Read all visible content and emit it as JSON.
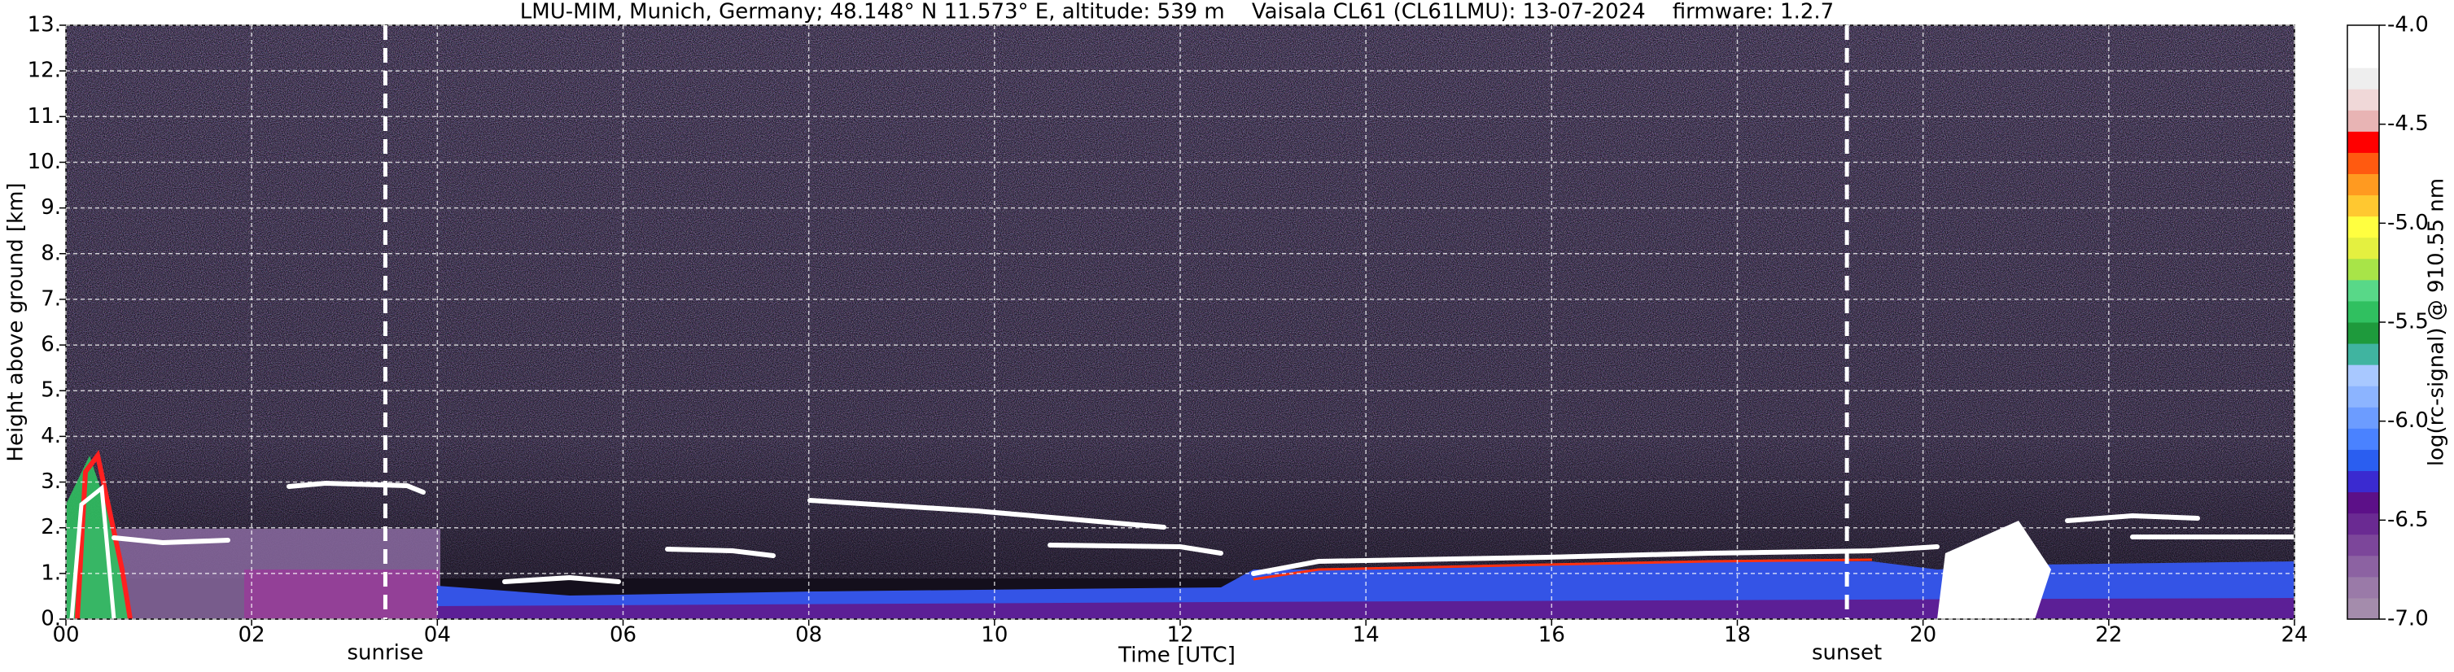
{
  "chart_data": {
    "type": "heatmap",
    "title": "LMU-MIM, Munich, Germany; 48.148° N 11.573° E, altitude: 539 m    Vaisala CL61 (CL61LMU): 13-07-2024    firmware: 1.2.7",
    "x_label": "Time [UTC]",
    "y_label": "Height above ground [km]",
    "xlim": [
      0,
      24
    ],
    "xticks": [
      {
        "value": 0,
        "label": "00"
      },
      {
        "value": 2,
        "label": "02"
      },
      {
        "value": 4,
        "label": "04"
      },
      {
        "value": 6,
        "label": "06"
      },
      {
        "value": 8,
        "label": "08"
      },
      10,
      12,
      14,
      16,
      18,
      20,
      22,
      24
    ],
    "ylim": [
      0,
      13
    ],
    "yticks": [
      {
        "value": 0,
        "label": "0."
      },
      {
        "value": 1,
        "label": "1."
      },
      {
        "value": 2,
        "label": "2."
      },
      {
        "value": 3,
        "label": "3."
      },
      {
        "value": 4,
        "label": "4."
      },
      {
        "value": 5,
        "label": "5."
      },
      {
        "value": 6,
        "label": "6."
      },
      {
        "value": 7,
        "label": "7."
      },
      {
        "value": 8,
        "label": "8."
      },
      {
        "value": 9,
        "label": "9."
      },
      {
        "value": 10,
        "label": "10."
      },
      {
        "value": 11,
        "label": "11."
      },
      {
        "value": 12,
        "label": "12."
      },
      {
        "value": 13,
        "label": "13."
      }
    ],
    "grid": true,
    "annotations": [
      {
        "label": "sunrise",
        "x": 3.44
      },
      {
        "label": "sunset",
        "x": 19.18
      }
    ],
    "colorbar": {
      "label": "log(rc-signal) @ 910.55 nm",
      "lim": [
        -7,
        -4
      ],
      "ticks": [
        {
          "value": -7,
          "label": "-7.0"
        },
        -6.5,
        {
          "value": -6,
          "label": "-6.0"
        },
        -5.5,
        {
          "value": -5,
          "label": "-5.0"
        },
        -4.5,
        {
          "value": -4,
          "label": "-4.0"
        }
      ],
      "colors": [
        "#a48cac",
        "#9a7aa8",
        "#8c62a2",
        "#7c469a",
        "#6a2a92",
        "#5c1088",
        "#3a2ad0",
        "#2a5ef0",
        "#4a82ff",
        "#6c9cff",
        "#8cb4ff",
        "#a8c8ff",
        "#40b4a0",
        "#1e9a3c",
        "#30c060",
        "#58d888",
        "#a8e448",
        "#e4f040",
        "#ffff40",
        "#ffc830",
        "#ff9a20",
        "#ff5a10",
        "#ff0000",
        "#e8b4b4",
        "#f0d8d8",
        "#eeeeee",
        "#ffffff",
        "#ffffff"
      ]
    }
  }
}
